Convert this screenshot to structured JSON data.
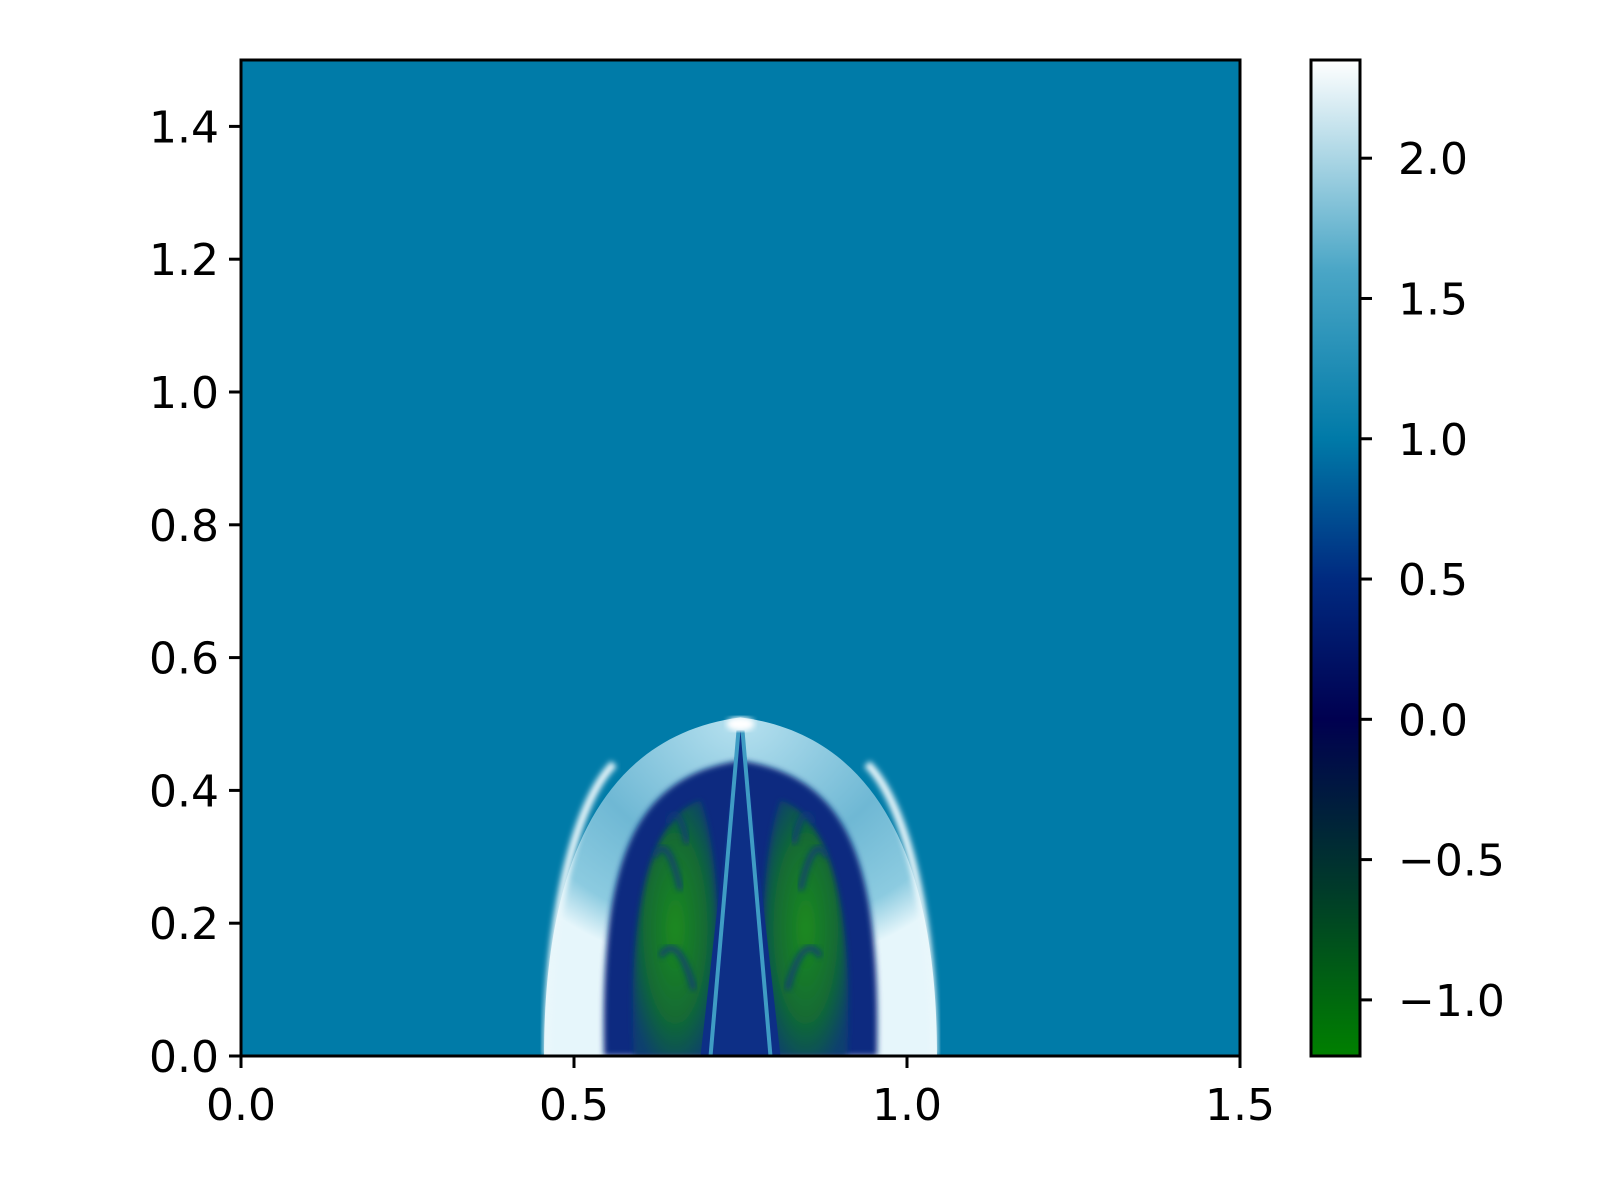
{
  "chart_data": {
    "type": "heatmap",
    "title": "",
    "xlabel": "",
    "ylabel": "",
    "xlim": [
      0.0,
      1.5
    ],
    "ylim": [
      0.0,
      1.5
    ],
    "x_ticks": [
      0.0,
      0.5,
      1.0,
      1.5
    ],
    "x_tick_labels": [
      "0.0",
      "0.5",
      "1.0",
      "1.5"
    ],
    "y_ticks": [
      0.0,
      0.2,
      0.4,
      0.6,
      0.8,
      1.0,
      1.2,
      1.4
    ],
    "y_tick_labels": [
      "0.0",
      "0.2",
      "0.4",
      "0.6",
      "0.8",
      "1.0",
      "1.2",
      "1.4"
    ],
    "grid": false,
    "background_value": 1.0,
    "features": [
      {
        "name": "outer shock front",
        "x_center": 0.75,
        "x_range": [
          0.455,
          1.045
        ],
        "y_top": 0.51,
        "value": 1.6
      },
      {
        "name": "shell edge highlight",
        "x_center": 0.75,
        "y_top": 0.5,
        "value": 2.3
      },
      {
        "name": "low-value interior",
        "x_range": [
          0.56,
          0.94
        ],
        "y_top": 0.43,
        "value": 0.3
      },
      {
        "name": "negative lobes",
        "x_range": [
          0.6,
          0.9
        ],
        "y_range": [
          0.0,
          0.38
        ],
        "value": -0.9
      },
      {
        "name": "central jet",
        "x_center": 0.75,
        "y_range": [
          0.0,
          0.5
        ],
        "value": 1.0
      }
    ],
    "colorbar": {
      "colormap": "ocean",
      "vmin": -1.2,
      "vmax": 2.35,
      "ticks": [
        -1.0,
        -0.5,
        0.0,
        0.5,
        1.0,
        1.5,
        2.0
      ],
      "tick_labels": [
        "−1.0",
        "−0.5",
        "0.0",
        "0.5",
        "1.0",
        "1.5",
        "2.0"
      ],
      "color_stops": [
        {
          "value": -1.2,
          "color": "#008000"
        },
        {
          "value": -0.6,
          "color": "#003a2a"
        },
        {
          "value": 0.0,
          "color": "#000050"
        },
        {
          "value": 0.5,
          "color": "#002a80"
        },
        {
          "value": 1.0,
          "color": "#007aa8"
        },
        {
          "value": 1.6,
          "color": "#4aa6c6"
        },
        {
          "value": 2.35,
          "color": "#ffffff"
        }
      ]
    },
    "colors": {
      "background_field": "#007ba8",
      "shock_light": "#7fc4dc",
      "interior_dark": "#0a2a80",
      "lobe_green": "#1b7a1e",
      "axis": "#000000"
    }
  }
}
